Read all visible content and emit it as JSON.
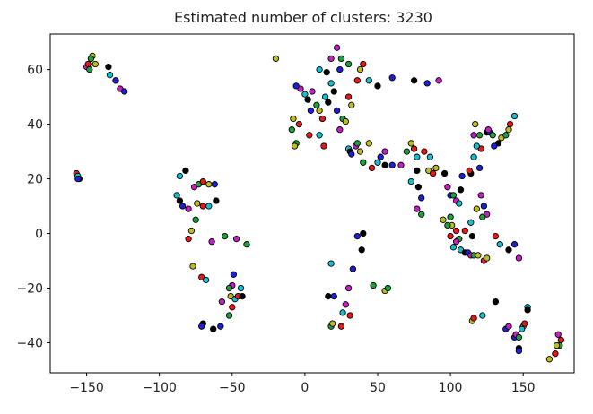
{
  "chart_data": {
    "type": "scatter",
    "title": "Estimated number of clusters: 3230",
    "xlabel": "",
    "ylabel": "",
    "xlim": [
      -175,
      185
    ],
    "ylim": [
      -51,
      73
    ],
    "xticks": [
      -150,
      -100,
      -50,
      0,
      50,
      100,
      150
    ],
    "xtick_labels": [
      "−150",
      "−100",
      "−50",
      "0",
      "50",
      "100",
      "150"
    ],
    "yticks": [
      -40,
      -20,
      0,
      20,
      40,
      60
    ],
    "ytick_labels": [
      "−40",
      "−20",
      "0",
      "20",
      "40",
      "60"
    ],
    "grid": false,
    "legend": false,
    "marker_edge_color": "#000000",
    "palette": [
      "#e31a1c",
      "#1f9e3d",
      "#1f1fd6",
      "#17becf",
      "#bcbd22",
      "#c41fc4",
      "#000000"
    ],
    "series": [
      {
        "values": [
          [
            -157,
            22
          ],
          [
            -156,
            21
          ],
          [
            -155,
            20
          ],
          [
            -156,
            20
          ],
          [
            -150,
            61
          ],
          [
            -148,
            60
          ],
          [
            -146,
            65
          ],
          [
            -147,
            64
          ],
          [
            -144,
            62
          ],
          [
            -149,
            62
          ],
          [
            -134,
            58
          ],
          [
            -135,
            61
          ],
          [
            -130,
            56
          ],
          [
            -127,
            53
          ],
          [
            -124,
            52
          ],
          [
            -76,
            17
          ],
          [
            -73,
            18
          ],
          [
            -66,
            18
          ],
          [
            -70,
            19
          ],
          [
            -86,
            21
          ],
          [
            -82,
            23
          ],
          [
            -88,
            14
          ],
          [
            -86,
            12
          ],
          [
            -84,
            10
          ],
          [
            -80,
            9
          ],
          [
            -75,
            5
          ],
          [
            -78,
            1
          ],
          [
            -80,
            -2
          ],
          [
            -74,
            11
          ],
          [
            -70,
            10
          ],
          [
            -66,
            10
          ],
          [
            -61,
            12
          ],
          [
            -62,
            18
          ],
          [
            -64,
            -3
          ],
          [
            -55,
            -1
          ],
          [
            -47,
            -2
          ],
          [
            -40,
            -4
          ],
          [
            -77,
            -12
          ],
          [
            -71,
            -16
          ],
          [
            -68,
            -17
          ],
          [
            -70,
            -33
          ],
          [
            -71,
            -34
          ],
          [
            -63,
            -35
          ],
          [
            -58,
            -34
          ],
          [
            -57,
            -25
          ],
          [
            -52,
            -30
          ],
          [
            -51,
            -23
          ],
          [
            -50,
            -27
          ],
          [
            -48,
            -24
          ],
          [
            -46,
            -23
          ],
          [
            -44,
            -20
          ],
          [
            -43,
            -23
          ],
          [
            -49,
            -15
          ],
          [
            -50,
            -19
          ],
          [
            -52,
            -20
          ],
          [
            -20,
            64
          ],
          [
            -9,
            38
          ],
          [
            -8,
            42
          ],
          [
            -4,
            40
          ],
          [
            0,
            51
          ],
          [
            2,
            49
          ],
          [
            4,
            45
          ],
          [
            -3,
            53
          ],
          [
            -6,
            54
          ],
          [
            5,
            52
          ],
          [
            8,
            47
          ],
          [
            10,
            45
          ],
          [
            12,
            42
          ],
          [
            14,
            50
          ],
          [
            16,
            48
          ],
          [
            18,
            55
          ],
          [
            20,
            52
          ],
          [
            22,
            45
          ],
          [
            24,
            38
          ],
          [
            26,
            42
          ],
          [
            28,
            41
          ],
          [
            30,
            50
          ],
          [
            32,
            47
          ],
          [
            36,
            56
          ],
          [
            10,
            60
          ],
          [
            15,
            59
          ],
          [
            24,
            60
          ],
          [
            18,
            64
          ],
          [
            25,
            64
          ],
          [
            22,
            68
          ],
          [
            30,
            62
          ],
          [
            38,
            60
          ],
          [
            40,
            62
          ],
          [
            44,
            56
          ],
          [
            50,
            54
          ],
          [
            60,
            57
          ],
          [
            75,
            56
          ],
          [
            84,
            55
          ],
          [
            92,
            56
          ],
          [
            -6,
            33
          ],
          [
            -7,
            32
          ],
          [
            3,
            36
          ],
          [
            10,
            36
          ],
          [
            13,
            32
          ],
          [
            30,
            31
          ],
          [
            31,
            30
          ],
          [
            32,
            29
          ],
          [
            35,
            32
          ],
          [
            36,
            33
          ],
          [
            38,
            30
          ],
          [
            40,
            26
          ],
          [
            44,
            33
          ],
          [
            46,
            24
          ],
          [
            50,
            26
          ],
          [
            55,
            25
          ],
          [
            52,
            28
          ],
          [
            55,
            30
          ],
          [
            60,
            25
          ],
          [
            66,
            25
          ],
          [
            70,
            30
          ],
          [
            73,
            33
          ],
          [
            75,
            31
          ],
          [
            77,
            28
          ],
          [
            77,
            23
          ],
          [
            73,
            19
          ],
          [
            78,
            17
          ],
          [
            80,
            13
          ],
          [
            77,
            9
          ],
          [
            80,
            7
          ],
          [
            85,
            23
          ],
          [
            88,
            22
          ],
          [
            90,
            24
          ],
          [
            82,
            30
          ],
          [
            86,
            28
          ],
          [
            96,
            22
          ],
          [
            100,
            14
          ],
          [
            98,
            17
          ],
          [
            102,
            14
          ],
          [
            104,
            12
          ],
          [
            100,
            6
          ],
          [
            101,
            3
          ],
          [
            104,
            1
          ],
          [
            106,
            11
          ],
          [
            107,
            16
          ],
          [
            108,
            21
          ],
          [
            114,
            22
          ],
          [
            120,
            24
          ],
          [
            116,
            36
          ],
          [
            120,
            36
          ],
          [
            117,
            40
          ],
          [
            121,
            31
          ],
          [
            118,
            32
          ],
          [
            113,
            23
          ],
          [
            116,
            28
          ],
          [
            125,
            37
          ],
          [
            127,
            37
          ],
          [
            126,
            38
          ],
          [
            129,
            36
          ],
          [
            135,
            35
          ],
          [
            138,
            36
          ],
          [
            140,
            38
          ],
          [
            141,
            40
          ],
          [
            144,
            43
          ],
          [
            133,
            33
          ],
          [
            130,
            32
          ],
          [
            121,
            14
          ],
          [
            123,
            10
          ],
          [
            125,
            7
          ],
          [
            122,
            6
          ],
          [
            118,
            9
          ],
          [
            110,
            1
          ],
          [
            114,
            4
          ],
          [
            115,
            -1
          ],
          [
            107,
            -6
          ],
          [
            110,
            -7
          ],
          [
            112,
            -7
          ],
          [
            114,
            -8
          ],
          [
            116,
            -8
          ],
          [
            119,
            -8
          ],
          [
            123,
            -10
          ],
          [
            125,
            -9
          ],
          [
            131,
            -1
          ],
          [
            134,
            -4
          ],
          [
            140,
            -6
          ],
          [
            144,
            -4
          ],
          [
            147,
            -9
          ],
          [
            106,
            -2
          ],
          [
            104,
            -3
          ],
          [
            98,
            3
          ],
          [
            95,
            5
          ],
          [
            100,
            -1
          ],
          [
            102,
            -5
          ],
          [
            40,
            0
          ],
          [
            36,
            -1
          ],
          [
            39,
            -6
          ],
          [
            33,
            -13
          ],
          [
            28,
            -26
          ],
          [
            18,
            -34
          ],
          [
            19,
            -33
          ],
          [
            25,
            -34
          ],
          [
            26,
            -29
          ],
          [
            31,
            -30
          ],
          [
            18,
            -11
          ],
          [
            16,
            -23
          ],
          [
            20,
            -23
          ],
          [
            30,
            -20
          ],
          [
            47,
            -19
          ],
          [
            55,
            -21
          ],
          [
            57,
            -20
          ],
          [
            115,
            -32
          ],
          [
            116,
            -31
          ],
          [
            122,
            -30
          ],
          [
            131,
            -25
          ],
          [
            138,
            -35
          ],
          [
            140,
            -34
          ],
          [
            144,
            -38
          ],
          [
            145,
            -37
          ],
          [
            147,
            -38
          ],
          [
            150,
            -34
          ],
          [
            151,
            -33
          ],
          [
            153,
            -27
          ],
          [
            153,
            -28
          ],
          [
            149,
            -35
          ],
          [
            147,
            -42
          ],
          [
            147,
            -43
          ],
          [
            174,
            -37
          ],
          [
            175,
            -41
          ],
          [
            173,
            -41
          ],
          [
            172,
            -44
          ],
          [
            168,
            -46
          ],
          [
            176,
            -39
          ]
        ]
      }
    ]
  }
}
